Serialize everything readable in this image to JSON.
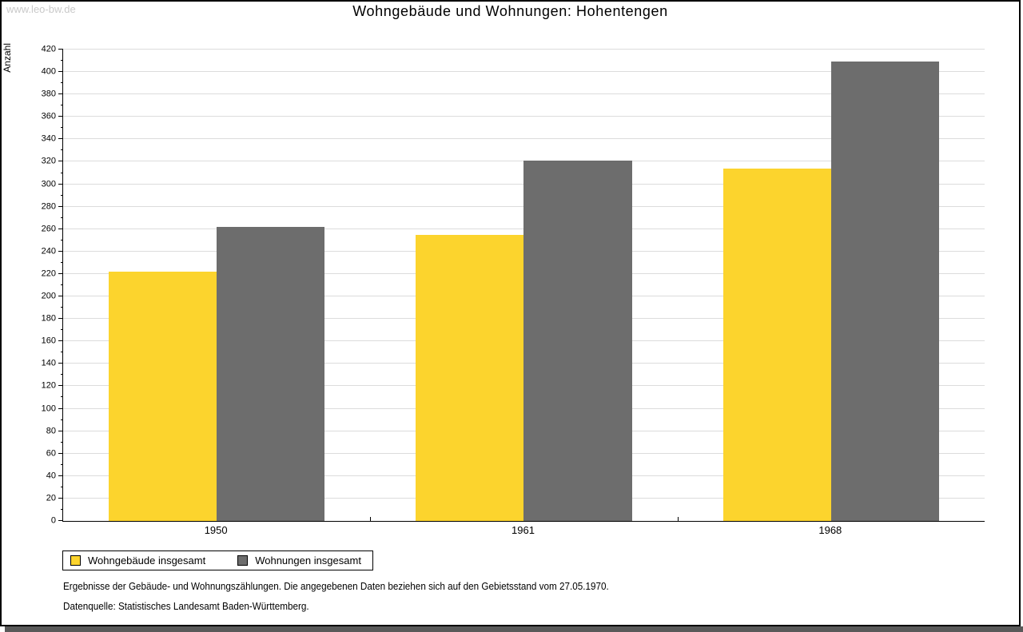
{
  "watermark": "www.leo-bw.de",
  "footer": {
    "line1": "Ergebnisse der Gebäude- und Wohnungszählungen. Die angegebenen Daten beziehen sich auf den Gebietsstand vom 27.05.1970.",
    "line2": "Datenquelle: Statistisches Landesamt Baden-Württemberg."
  },
  "chart_data": {
    "type": "bar",
    "title": "Wohngebäude und Wohnungen: Hohentengen",
    "xlabel": "",
    "ylabel": "Anzahl",
    "categories": [
      "1950",
      "1961",
      "1968"
    ],
    "series": [
      {
        "name": "Wohngebäude insgesamt",
        "color": "#fcd42d",
        "values": [
          222,
          255,
          314
        ]
      },
      {
        "name": "Wohnungen insgesamt",
        "color": "#6d6d6d",
        "values": [
          262,
          321,
          409
        ]
      }
    ],
    "ylim": [
      0,
      420
    ],
    "ytick_step": 20,
    "minor_tick_step": 10,
    "grid": true,
    "gridline_color": "#dcdcdc",
    "legend_position": "bottom-left"
  }
}
